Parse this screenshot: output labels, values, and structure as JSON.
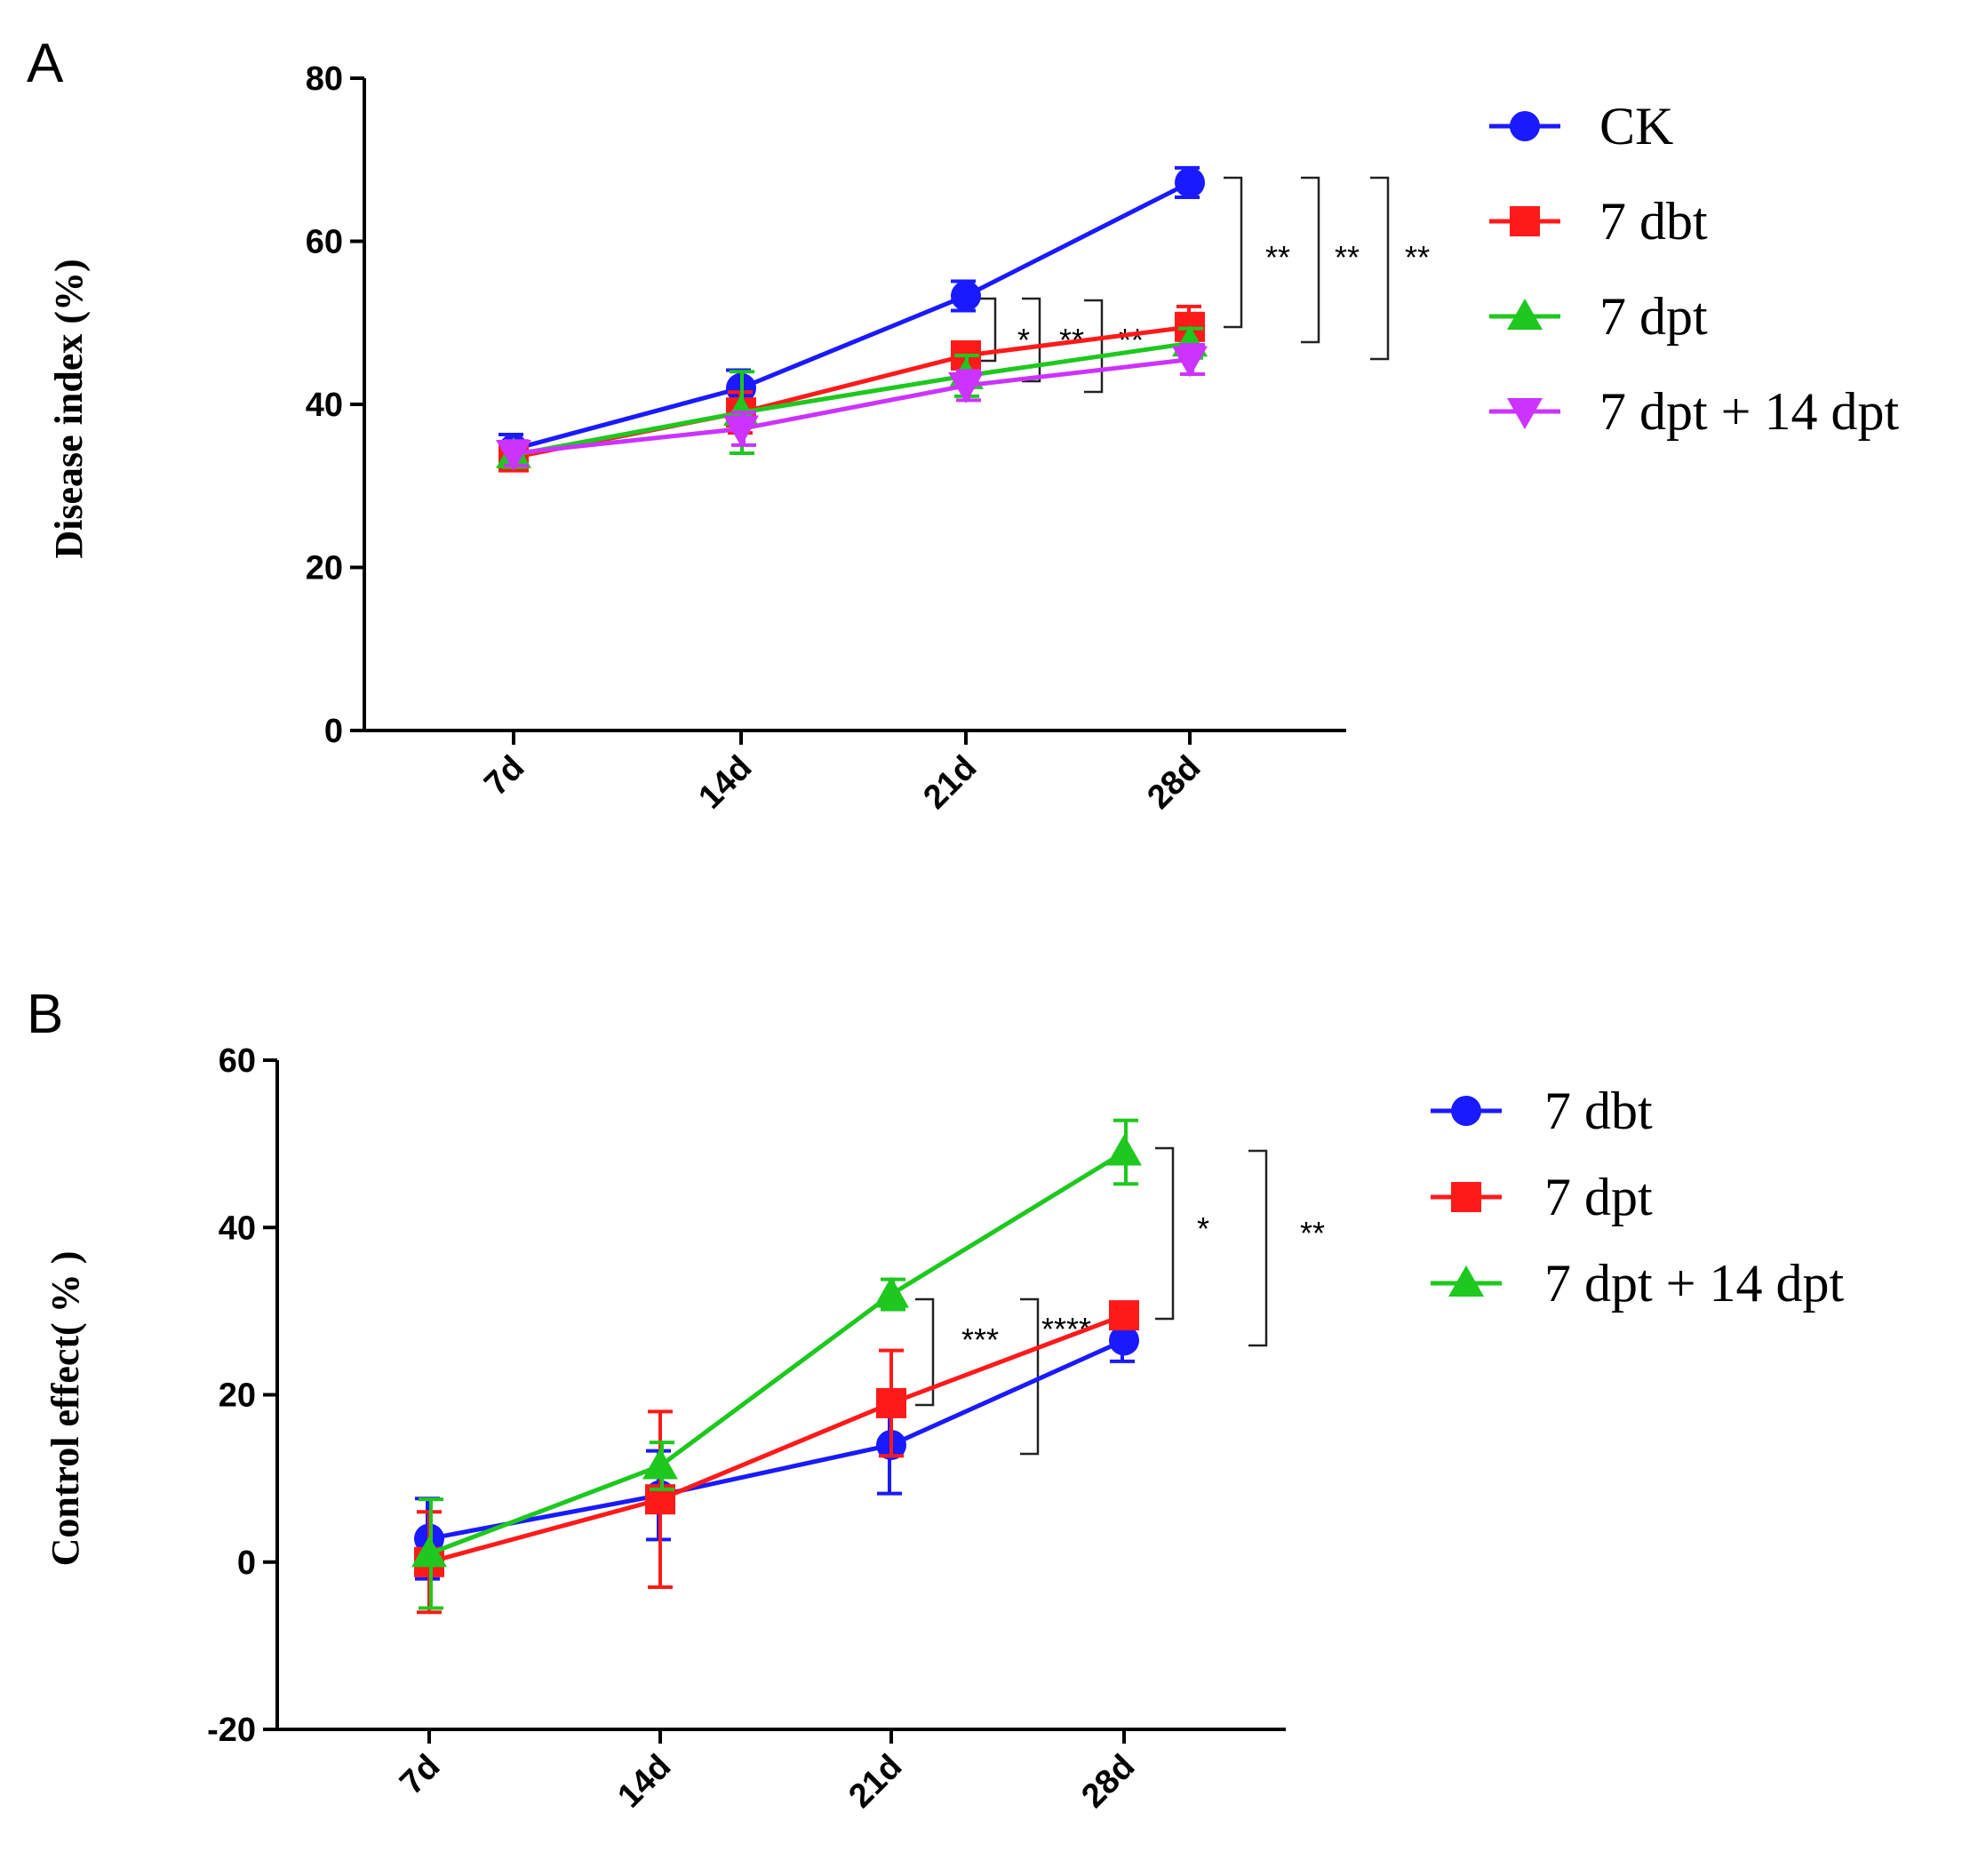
{
  "chart_data": [
    {
      "panel": "A",
      "type": "line",
      "xlabel": "",
      "ylabel": "Disease index (%)",
      "categories": [
        "7d",
        "14d",
        "21d",
        "28d"
      ],
      "ylim": [
        0,
        80
      ],
      "yticks": [
        0,
        20,
        40,
        60,
        80
      ],
      "series": [
        {
          "name": "CK",
          "color": "#1a1aff",
          "marker": "circle",
          "values": [
            34.5,
            42,
            53.3,
            67.2
          ],
          "errors": [
            1.8,
            2.2,
            1.8,
            1.8
          ]
        },
        {
          "name": "7 dbt",
          "color": "#ff1a1a",
          "marker": "square",
          "values": [
            33.5,
            39,
            46,
            49.5
          ],
          "errors": [
            1.5,
            2.5,
            1.5,
            2.5
          ]
        },
        {
          "name": "7 dpt",
          "color": "#1ec81e",
          "marker": "triangle-up",
          "values": [
            33.8,
            39,
            43.5,
            47.5
          ],
          "errors": [
            1.5,
            5,
            2.5,
            1.8
          ]
        },
        {
          "name": "7 dpt + 14 dpt",
          "color": "#cc33ff",
          "marker": "triangle-down",
          "values": [
            34,
            37,
            42.3,
            45.5
          ],
          "errors": [
            1.5,
            2,
            1.8,
            1.8
          ]
        }
      ],
      "legend_position": "right",
      "annotations": [
        {
          "text": "**",
          "at": "28d",
          "between": [
            "CK",
            "7 dbt"
          ]
        },
        {
          "text": "**",
          "at": "28d",
          "between": [
            "CK",
            "7 dpt"
          ]
        },
        {
          "text": "**",
          "at": "28d",
          "between": [
            "CK",
            "7 dpt + 14 dpt"
          ]
        },
        {
          "text": "*",
          "at": "21d-28d",
          "between": [
            "7 dbt",
            "7 dpt"
          ]
        },
        {
          "text": "**",
          "at": "21d-28d",
          "between": [
            "7 dbt",
            "7 dpt + 14 dpt"
          ]
        },
        {
          "text": "**",
          "at": "21d-28d",
          "between": [
            "7 dpt",
            "7 dpt + 14 dpt"
          ]
        }
      ]
    },
    {
      "panel": "B",
      "type": "line",
      "xlabel": "",
      "ylabel": "Control effect( % )",
      "categories": [
        "7d",
        "14d",
        "21d",
        "28d"
      ],
      "ylim": [
        -20,
        60
      ],
      "yticks": [
        -20,
        0,
        20,
        40,
        60
      ],
      "series": [
        {
          "name": "7 dbt",
          "color": "#1a1aff",
          "marker": "circle",
          "values": [
            2.8,
            8,
            14,
            26.5
          ],
          "errors": [
            4.8,
            5.3,
            5.8,
            2.5
          ]
        },
        {
          "name": "7 dpt",
          "color": "#ff1a1a",
          "marker": "square",
          "values": [
            0,
            7.5,
            19,
            29.5
          ],
          "errors": [
            6,
            10.5,
            6.3,
            1.5
          ]
        },
        {
          "name": "7 dpt + 14 dpt",
          "color": "#1ec81e",
          "marker": "triangle-up",
          "values": [
            1,
            11.5,
            32,
            49
          ],
          "errors": [
            6.5,
            2.8,
            1.8,
            3.8
          ]
        }
      ],
      "legend_position": "right",
      "annotations": [
        {
          "text": "*",
          "at": "21d-28d",
          "between": [
            "7 dbt",
            "7 dpt"
          ]
        },
        {
          "text": "**",
          "at": "21d-28d",
          "between": [
            "7 dbt",
            "7 dpt + 14 dpt"
          ]
        },
        {
          "text": "***",
          "at": "28d",
          "between": [
            "7 dpt",
            "7 dpt + 14 dpt"
          ]
        },
        {
          "text": "****",
          "at": "28d",
          "between": [
            "7 dbt",
            "7 dpt + 14 dpt"
          ]
        }
      ]
    }
  ]
}
